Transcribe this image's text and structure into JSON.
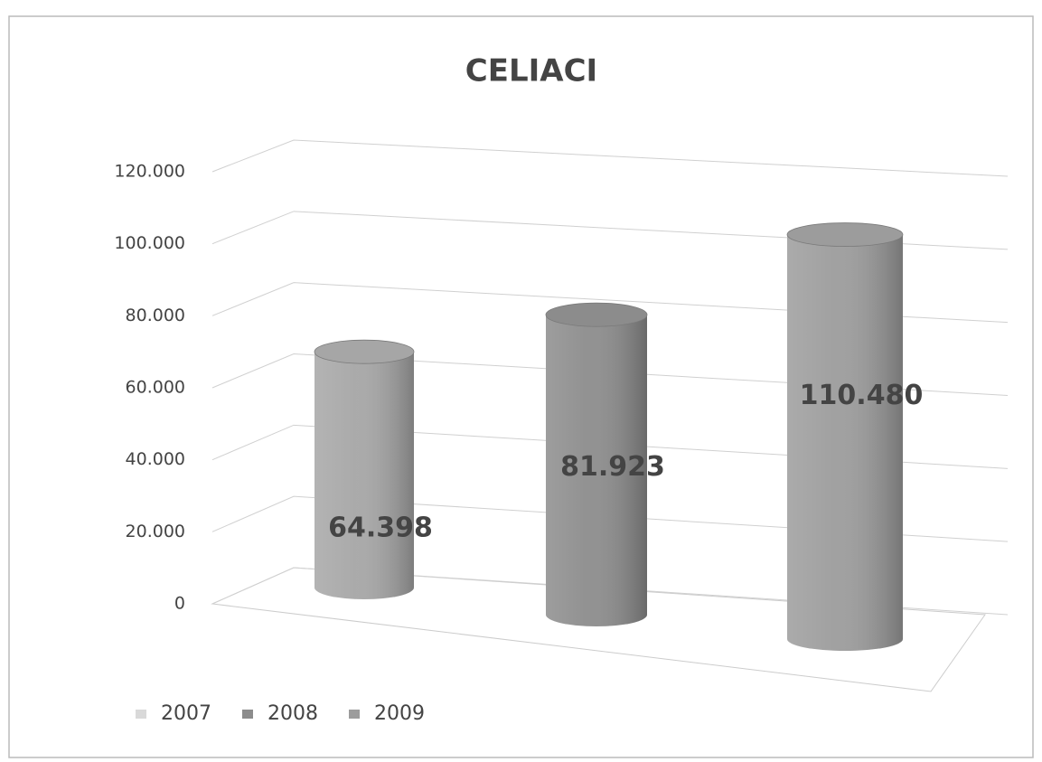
{
  "chart_data": {
    "type": "cylinder",
    "title": "CELIACI",
    "categories": [
      null
    ],
    "series": [
      {
        "name": "2007",
        "color": "#a6a6a6",
        "values": [
          64398
        ],
        "value_labels": [
          "64.398"
        ]
      },
      {
        "name": "2008",
        "color": "#8c8c8c",
        "values": [
          81923
        ],
        "value_labels": [
          "81.923"
        ]
      },
      {
        "name": "2009",
        "color": "#9c9c9c",
        "values": [
          110480
        ],
        "value_labels": [
          "110.480"
        ]
      }
    ],
    "ylim": [
      0,
      120000
    ],
    "yticks": [
      0,
      {
        "value": 20000,
        "label": "20.000"
      },
      {
        "value": 40000,
        "label": "40.000"
      },
      {
        "value": 60000,
        "label": "60.000"
      },
      {
        "value": 80000,
        "label": "80.000"
      },
      {
        "value": 100000,
        "label": "100.000"
      },
      {
        "value": 120000,
        "label": "120.000"
      }
    ],
    "grid": true,
    "legend": "bottom-left"
  }
}
